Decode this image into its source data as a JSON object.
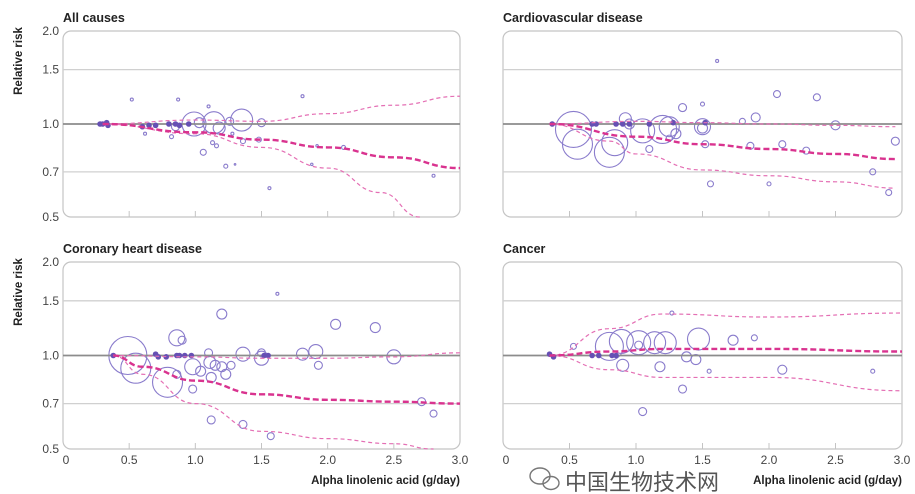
{
  "chart_data": [
    {
      "type": "scatter",
      "title": "All causes",
      "ylabel": "Relative risk",
      "xlabel": "",
      "xlim": [
        0,
        3.0
      ],
      "ylim": [
        0.5,
        2.0
      ],
      "y_scale": "log",
      "yticks": [
        "2.0",
        "1.5",
        "1.0",
        "0.7",
        "0.5"
      ],
      "xticks": [],
      "reference_line": 1.0,
      "filled_points": [
        [
          0.28,
          1.0
        ],
        [
          0.3,
          1.0
        ],
        [
          0.33,
          1.01
        ],
        [
          0.34,
          0.99
        ],
        [
          0.6,
          0.98
        ],
        [
          0.65,
          0.99
        ],
        [
          0.7,
          0.99
        ],
        [
          0.8,
          1.0
        ],
        [
          0.85,
          1.0
        ],
        [
          0.88,
          0.99
        ],
        [
          0.95,
          1.0
        ]
      ],
      "open_points": [
        [
          0.52,
          1.2,
          1.5
        ],
        [
          0.87,
          1.2,
          1.5
        ],
        [
          1.1,
          1.14,
          1.5
        ],
        [
          1.81,
          1.23,
          1.5
        ],
        [
          0.62,
          0.93,
          1.5
        ],
        [
          0.82,
          0.91,
          2
        ],
        [
          0.85,
          0.98,
          4
        ],
        [
          0.99,
          1.0,
          12
        ],
        [
          1.03,
          1.01,
          5
        ],
        [
          1.14,
          1.01,
          11
        ],
        [
          1.18,
          0.97,
          6
        ],
        [
          1.26,
          1.02,
          4
        ],
        [
          1.35,
          1.03,
          11
        ],
        [
          1.5,
          1.01,
          4
        ],
        [
          1.06,
          0.81,
          3
        ],
        [
          1.13,
          0.87,
          2
        ],
        [
          1.16,
          0.85,
          2
        ],
        [
          1.23,
          0.73,
          2
        ],
        [
          1.3,
          0.74,
          0.8
        ],
        [
          1.36,
          0.88,
          2.5
        ],
        [
          1.48,
          0.89,
          2.5
        ],
        [
          1.28,
          0.93,
          1.5
        ],
        [
          1.56,
          0.62,
          1.5
        ],
        [
          1.88,
          0.74,
          1.2
        ],
        [
          1.92,
          0.85,
          1.2
        ],
        [
          2.12,
          0.84,
          2
        ],
        [
          2.8,
          0.68,
          1.5
        ]
      ],
      "curve": [
        [
          0.3,
          1.0
        ],
        [
          1.0,
          0.94
        ],
        [
          1.5,
          0.89
        ],
        [
          2.0,
          0.84
        ],
        [
          2.5,
          0.78
        ],
        [
          3.0,
          0.72
        ]
      ],
      "ci_upper": [
        [
          0.3,
          1.0
        ],
        [
          1.0,
          1.03
        ],
        [
          1.5,
          1.02
        ],
        [
          2.0,
          1.08
        ],
        [
          2.5,
          1.15
        ],
        [
          3.0,
          1.23
        ]
      ],
      "ci_lower": [
        [
          0.3,
          1.0
        ],
        [
          1.0,
          0.93
        ],
        [
          1.5,
          0.84
        ],
        [
          2.0,
          0.72
        ],
        [
          2.4,
          0.6
        ],
        [
          2.7,
          0.5
        ]
      ]
    },
    {
      "type": "scatter",
      "title": "Cardiovascular disease",
      "ylabel": "",
      "xlabel": "",
      "xlim": [
        0,
        3.0
      ],
      "ylim": [
        0.5,
        2.0
      ],
      "y_scale": "log",
      "yticks": [],
      "xticks": [],
      "reference_line": 1.0,
      "filled_points": [
        [
          0.37,
          1.0
        ],
        [
          0.67,
          1.0
        ],
        [
          0.7,
          1.0
        ],
        [
          0.85,
          1.0
        ],
        [
          0.9,
          1.0
        ],
        [
          0.95,
          1.0
        ],
        [
          1.1,
          1.0
        ],
        [
          1.28,
          1.01
        ],
        [
          1.52,
          1.01
        ]
      ],
      "open_points": [
        [
          1.61,
          1.6,
          1.5
        ],
        [
          2.06,
          1.25,
          3.5
        ],
        [
          2.36,
          1.22,
          3.5
        ],
        [
          1.35,
          1.13,
          4
        ],
        [
          1.5,
          1.16,
          2
        ],
        [
          0.53,
          0.96,
          18
        ],
        [
          0.56,
          0.86,
          15
        ],
        [
          0.8,
          0.81,
          15
        ],
        [
          0.84,
          0.87,
          13
        ],
        [
          0.92,
          1.04,
          6
        ],
        [
          0.95,
          1.0,
          5
        ],
        [
          1.05,
          0.95,
          12
        ],
        [
          1.2,
          0.96,
          14
        ],
        [
          1.25,
          0.98,
          10
        ],
        [
          1.3,
          0.93,
          5
        ],
        [
          1.1,
          0.83,
          3.5
        ],
        [
          1.5,
          0.98,
          8
        ],
        [
          1.5,
          0.97,
          5
        ],
        [
          1.52,
          0.86,
          3.5
        ],
        [
          1.56,
          0.64,
          3
        ],
        [
          1.8,
          1.02,
          3
        ],
        [
          1.9,
          1.05,
          4.5
        ],
        [
          1.86,
          0.85,
          3.5
        ],
        [
          2.0,
          0.64,
          2
        ],
        [
          2.1,
          0.86,
          3.5
        ],
        [
          2.28,
          0.82,
          3.5
        ],
        [
          2.5,
          0.99,
          4.5
        ],
        [
          2.78,
          0.7,
          3
        ],
        [
          2.95,
          0.88,
          4
        ],
        [
          2.9,
          0.6,
          3
        ],
        [
          1.25,
          0.9,
          3
        ]
      ],
      "curve": [
        [
          0.35,
          1.0
        ],
        [
          1.0,
          0.91
        ],
        [
          1.5,
          0.86
        ],
        [
          2.0,
          0.83
        ],
        [
          2.5,
          0.8
        ],
        [
          2.95,
          0.77
        ]
      ],
      "ci_upper": [
        [
          0.35,
          1.0
        ],
        [
          1.0,
          1.02
        ],
        [
          1.5,
          1.01
        ],
        [
          2.0,
          1.0
        ],
        [
          2.5,
          0.99
        ],
        [
          2.95,
          0.98
        ]
      ],
      "ci_lower": [
        [
          0.35,
          1.0
        ],
        [
          0.8,
          0.88
        ],
        [
          1.0,
          0.8
        ],
        [
          1.5,
          0.71
        ],
        [
          2.0,
          0.68
        ],
        [
          2.5,
          0.65
        ],
        [
          2.95,
          0.62
        ]
      ]
    },
    {
      "type": "scatter",
      "title": "Coronary heart disease",
      "ylabel": "Relative risk",
      "xlabel": "Alpha linolenic acid (g/day)",
      "xlim": [
        0,
        3.0
      ],
      "ylim": [
        0.5,
        2.0
      ],
      "y_scale": "log",
      "yticks": [
        "2.0",
        "1.5",
        "1.0",
        "0.7",
        "0.5"
      ],
      "xticks": [
        "0",
        "0.5",
        "1.0",
        "1.5",
        "2.0",
        "2.5",
        "3.0"
      ],
      "reference_line": 1.0,
      "filled_points": [
        [
          0.38,
          1.0
        ],
        [
          0.7,
          1.01
        ],
        [
          0.72,
          0.99
        ],
        [
          0.78,
          0.99
        ],
        [
          0.86,
          1.0
        ],
        [
          0.88,
          1.0
        ],
        [
          0.92,
          1.0
        ],
        [
          0.97,
          1.0
        ],
        [
          1.52,
          1.0
        ],
        [
          1.55,
          1.0
        ]
      ],
      "open_points": [
        [
          1.62,
          1.58,
          1.5
        ],
        [
          1.2,
          1.36,
          5
        ],
        [
          2.06,
          1.26,
          5
        ],
        [
          2.36,
          1.23,
          5
        ],
        [
          0.86,
          1.14,
          8
        ],
        [
          0.9,
          1.12,
          4
        ],
        [
          0.49,
          1.0,
          19
        ],
        [
          0.55,
          0.91,
          15
        ],
        [
          0.79,
          0.82,
          15
        ],
        [
          0.86,
          0.87,
          4
        ],
        [
          0.98,
          0.92,
          8
        ],
        [
          1.04,
          0.89,
          5
        ],
        [
          1.1,
          1.02,
          4
        ],
        [
          1.11,
          0.95,
          6
        ],
        [
          1.15,
          0.93,
          5
        ],
        [
          1.2,
          0.92,
          5
        ],
        [
          1.27,
          0.93,
          4
        ],
        [
          1.23,
          0.87,
          5
        ],
        [
          1.12,
          0.85,
          5
        ],
        [
          0.98,
          0.78,
          4
        ],
        [
          1.12,
          0.62,
          4
        ],
        [
          1.36,
          0.6,
          4
        ],
        [
          1.57,
          0.55,
          3.5
        ],
        [
          1.36,
          1.01,
          7
        ],
        [
          1.5,
          1.02,
          4
        ],
        [
          1.5,
          0.98,
          7
        ],
        [
          1.81,
          1.01,
          6
        ],
        [
          1.91,
          1.03,
          7
        ],
        [
          1.93,
          0.93,
          4
        ],
        [
          2.5,
          0.99,
          7
        ],
        [
          2.71,
          0.71,
          4
        ],
        [
          2.8,
          0.65,
          3.5
        ]
      ],
      "curve": [
        [
          0.38,
          1.0
        ],
        [
          0.6,
          0.92
        ],
        [
          1.0,
          0.83
        ],
        [
          1.5,
          0.75
        ],
        [
          2.0,
          0.72
        ],
        [
          2.5,
          0.71
        ],
        [
          3.0,
          0.7
        ]
      ],
      "ci_upper": [
        [
          0.38,
          1.0
        ],
        [
          1.0,
          0.99
        ],
        [
          1.5,
          0.98
        ],
        [
          2.0,
          0.98
        ],
        [
          2.5,
          0.99
        ],
        [
          3.0,
          1.02
        ]
      ],
      "ci_lower": [
        [
          0.38,
          1.0
        ],
        [
          0.6,
          0.87
        ],
        [
          1.0,
          0.7
        ],
        [
          1.5,
          0.57
        ],
        [
          2.0,
          0.54
        ],
        [
          2.5,
          0.52
        ],
        [
          2.8,
          0.5
        ]
      ]
    },
    {
      "type": "scatter",
      "title": "Cancer",
      "ylabel": "",
      "xlabel": "Alpha linolenic acid (g/day)",
      "xlim": [
        0,
        3.0
      ],
      "ylim": [
        0.5,
        2.0
      ],
      "y_scale": "log",
      "yticks": [],
      "xticks": [
        "0",
        "0.5",
        "1.0",
        "1.5",
        "2.0",
        "2.5",
        "3.0"
      ],
      "reference_line": 1.0,
      "filled_points": [
        [
          0.35,
          1.01
        ],
        [
          0.38,
          0.99
        ],
        [
          0.67,
          1.0
        ],
        [
          0.72,
          1.0
        ],
        [
          0.82,
          1.0
        ],
        [
          0.85,
          1.0
        ]
      ],
      "open_points": [
        [
          1.27,
          1.37,
          2
        ],
        [
          0.53,
          1.07,
          3
        ],
        [
          0.8,
          1.07,
          14
        ],
        [
          0.89,
          1.11,
          12
        ],
        [
          1.02,
          1.1,
          12
        ],
        [
          1.14,
          1.1,
          11
        ],
        [
          1.22,
          1.1,
          11
        ],
        [
          1.02,
          1.08,
          4
        ],
        [
          1.47,
          1.13,
          11
        ],
        [
          1.73,
          1.12,
          5
        ],
        [
          1.89,
          1.14,
          3
        ],
        [
          0.9,
          0.93,
          6
        ],
        [
          1.18,
          0.92,
          5
        ],
        [
          1.38,
          0.99,
          5
        ],
        [
          1.45,
          0.97,
          5
        ],
        [
          1.35,
          0.78,
          4
        ],
        [
          1.05,
          0.66,
          4
        ],
        [
          1.55,
          0.89,
          2
        ],
        [
          2.1,
          0.9,
          4.5
        ],
        [
          2.78,
          0.89,
          2
        ]
      ],
      "curve": [
        [
          0.35,
          1.0
        ],
        [
          0.8,
          1.03
        ],
        [
          1.2,
          1.05
        ],
        [
          2.0,
          1.05
        ],
        [
          3.0,
          1.03
        ]
      ],
      "ci_upper": [
        [
          0.35,
          1.0
        ],
        [
          0.8,
          1.22
        ],
        [
          1.2,
          1.36
        ],
        [
          2.0,
          1.33
        ],
        [
          3.0,
          1.37
        ]
      ],
      "ci_lower": [
        [
          0.35,
          1.0
        ],
        [
          0.8,
          0.9
        ],
        [
          1.2,
          0.85
        ],
        [
          2.0,
          0.85
        ],
        [
          3.0,
          0.77
        ]
      ]
    }
  ],
  "colors": {
    "open_point": "#8a7ccc",
    "filled_point": "#6650b4",
    "curve": "#d9338f",
    "ci": "#e46fb4",
    "reference_line": "#8c8c8c",
    "grid": "#d0d0d0",
    "frame": "#c4c4c4"
  },
  "watermark": {
    "text": "中国生物技术网",
    "icon": "wechat-icon"
  }
}
